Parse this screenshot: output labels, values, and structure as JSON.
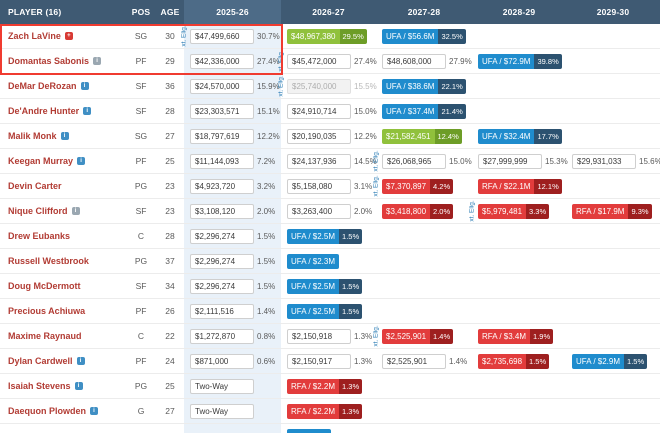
{
  "labels": {
    "ext_label": "xt. Elig."
  },
  "colors": {
    "header_bg": "#3f5a73",
    "selected_column_bg": "#e9f1f9",
    "highlight_border": "#f03b30",
    "green_badge": "#90c13c",
    "blue_badge": "#1f8ccd",
    "red_badge": "#e23c3c",
    "player_link": "#b23c34"
  },
  "columns": [
    {
      "label": "PLAYER (16)"
    },
    {
      "label": "POS"
    },
    {
      "label": "AGE"
    },
    {
      "label": "2025-26",
      "selected": true
    },
    {
      "label": "2026-27"
    },
    {
      "label": "2027-28"
    },
    {
      "label": "2028-29"
    },
    {
      "label": "2029-30"
    }
  ],
  "rows": [
    {
      "player": "Zach LaVine",
      "icon": {
        "name": "injury-icon",
        "color": "red",
        "glyph": "+"
      },
      "pos": "SG",
      "age": "30",
      "cells": {
        "y2025": {
          "t": "plain",
          "v": "$47,499,660",
          "p": "30.7%",
          "ext": true
        },
        "y2026": {
          "t": "badge",
          "c": "green",
          "v": "$48,967,380",
          "p": "29.5%"
        },
        "y2027": {
          "t": "badge",
          "c": "blue",
          "v": "UFA / $56.6M",
          "p": "32.5%"
        },
        "y2028": null,
        "y2029": null
      }
    },
    {
      "player": "Domantas Sabonis",
      "icon": {
        "name": "note-icon",
        "color": "gray",
        "glyph": "i"
      },
      "pos": "PF",
      "age": "29",
      "cells": {
        "y2025": {
          "t": "plain",
          "v": "$42,336,000",
          "p": "27.4%"
        },
        "y2026": {
          "t": "plain",
          "v": "$45,472,000",
          "p": "27.4%",
          "ext": true
        },
        "y2027": {
          "t": "plain",
          "v": "$48,608,000",
          "p": "27.9%"
        },
        "y2028": {
          "t": "badge",
          "c": "blue",
          "v": "UFA / $72.9M",
          "p": "39.8%"
        },
        "y2029": null
      }
    },
    {
      "player": "DeMar DeRozan",
      "icon": {
        "name": "info-icon",
        "color": "blue",
        "glyph": "i"
      },
      "pos": "SF",
      "age": "36",
      "cells": {
        "y2025": {
          "t": "plain",
          "v": "$24,570,000",
          "p": "15.9%"
        },
        "y2026": {
          "t": "muted",
          "v": "$25,740,000",
          "p": "15.5%",
          "ext": true
        },
        "y2027": {
          "t": "badge",
          "c": "blue",
          "v": "UFA / $38.6M",
          "p": "22.1%"
        },
        "y2028": null,
        "y2029": null
      }
    },
    {
      "player": "De'Andre Hunter",
      "icon": {
        "name": "info-icon",
        "color": "blue",
        "glyph": "i"
      },
      "pos": "SF",
      "age": "28",
      "cells": {
        "y2025": {
          "t": "plain",
          "v": "$23,303,571",
          "p": "15.1%"
        },
        "y2026": {
          "t": "plain",
          "v": "$24,910,714",
          "p": "15.0%"
        },
        "y2027": {
          "t": "badge",
          "c": "blue",
          "v": "UFA / $37.4M",
          "p": "21.4%"
        },
        "y2028": null,
        "y2029": null
      }
    },
    {
      "player": "Malik Monk",
      "icon": {
        "name": "info-icon",
        "color": "blue",
        "glyph": "i"
      },
      "pos": "SG",
      "age": "27",
      "cells": {
        "y2025": {
          "t": "plain",
          "v": "$18,797,619",
          "p": "12.2%"
        },
        "y2026": {
          "t": "plain",
          "v": "$20,190,035",
          "p": "12.2%"
        },
        "y2027": {
          "t": "badge",
          "c": "green",
          "v": "$21,582,451",
          "p": "12.4%"
        },
        "y2028": {
          "t": "badge",
          "c": "blue",
          "v": "UFA / $32.4M",
          "p": "17.7%"
        },
        "y2029": null
      }
    },
    {
      "player": "Keegan Murray",
      "icon": {
        "name": "info-icon",
        "color": "blue",
        "glyph": "i"
      },
      "pos": "PF",
      "age": "25",
      "cells": {
        "y2025": {
          "t": "plain",
          "v": "$11,144,093",
          "p": "7.2%"
        },
        "y2026": {
          "t": "plain",
          "v": "$24,137,936",
          "p": "14.5%"
        },
        "y2027": {
          "t": "plain",
          "v": "$26,068,965",
          "p": "15.0%",
          "ext": true
        },
        "y2028": {
          "t": "plain",
          "v": "$27,999,999",
          "p": "15.3%"
        },
        "y2029": {
          "t": "plain",
          "v": "$29,931,033",
          "p": "15.6%"
        }
      }
    },
    {
      "player": "Devin Carter",
      "icon": null,
      "pos": "PG",
      "age": "23",
      "cells": {
        "y2025": {
          "t": "plain",
          "v": "$4,923,720",
          "p": "3.2%"
        },
        "y2026": {
          "t": "plain",
          "v": "$5,158,080",
          "p": "3.1%"
        },
        "y2027": {
          "t": "badge",
          "c": "red",
          "v": "$7,370,897",
          "p": "4.2%",
          "ext": true
        },
        "y2028": {
          "t": "badge",
          "c": "red",
          "v": "RFA / $22.1M",
          "p": "12.1%"
        },
        "y2029": null
      }
    },
    {
      "player": "Nique Clifford",
      "icon": {
        "name": "note-icon",
        "color": "gray",
        "glyph": "i"
      },
      "pos": "SF",
      "age": "23",
      "cells": {
        "y2025": {
          "t": "plain",
          "v": "$3,108,120",
          "p": "2.0%"
        },
        "y2026": {
          "t": "plain",
          "v": "$3,263,400",
          "p": "2.0%"
        },
        "y2027": {
          "t": "badge",
          "c": "red",
          "v": "$3,418,800",
          "p": "2.0%"
        },
        "y2028": {
          "t": "badge",
          "c": "red",
          "v": "$5,979,481",
          "p": "3.3%",
          "ext": true
        },
        "y2029": {
          "t": "badge",
          "c": "red",
          "v": "RFA / $17.9M",
          "p": "9.3%"
        }
      }
    },
    {
      "player": "Drew Eubanks",
      "icon": null,
      "pos": "C",
      "age": "28",
      "cells": {
        "y2025": {
          "t": "plain",
          "v": "$2,296,274",
          "p": "1.5%"
        },
        "y2026": {
          "t": "badge",
          "c": "blue",
          "v": "UFA / $2.5M",
          "p": "1.5%"
        },
        "y2027": null,
        "y2028": null,
        "y2029": null
      }
    },
    {
      "player": "Russell Westbrook",
      "icon": null,
      "pos": "PG",
      "age": "37",
      "cells": {
        "y2025": {
          "t": "plain",
          "v": "$2,296,274",
          "p": "1.5%"
        },
        "y2026": {
          "t": "badge",
          "c": "blue",
          "v": "UFA / $2.3M",
          "p": ""
        },
        "y2027": null,
        "y2028": null,
        "y2029": null
      }
    },
    {
      "player": "Doug McDermott",
      "icon": null,
      "pos": "SF",
      "age": "34",
      "cells": {
        "y2025": {
          "t": "plain",
          "v": "$2,296,274",
          "p": "1.5%"
        },
        "y2026": {
          "t": "badge",
          "c": "blue",
          "v": "UFA / $2.5M",
          "p": "1.5%"
        },
        "y2027": null,
        "y2028": null,
        "y2029": null
      }
    },
    {
      "player": "Precious Achiuwa",
      "icon": null,
      "pos": "PF",
      "age": "26",
      "cells": {
        "y2025": {
          "t": "plain",
          "v": "$2,111,516",
          "p": "1.4%"
        },
        "y2026": {
          "t": "badge",
          "c": "blue",
          "v": "UFA / $2.5M",
          "p": "1.5%"
        },
        "y2027": null,
        "y2028": null,
        "y2029": null
      }
    },
    {
      "player": "Maxime Raynaud",
      "icon": null,
      "pos": "C",
      "age": "22",
      "cells": {
        "y2025": {
          "t": "plain",
          "v": "$1,272,870",
          "p": "0.8%"
        },
        "y2026": {
          "t": "plain",
          "v": "$2,150,918",
          "p": "1.3%"
        },
        "y2027": {
          "t": "badge",
          "c": "red",
          "v": "$2,525,901",
          "p": "1.4%",
          "ext": true
        },
        "y2028": {
          "t": "badge",
          "c": "red",
          "v": "RFA / $3.4M",
          "p": "1.9%"
        },
        "y2029": null
      }
    },
    {
      "player": "Dylan Cardwell",
      "icon": {
        "name": "info-icon",
        "color": "blue",
        "glyph": "i"
      },
      "pos": "PF",
      "age": "24",
      "cells": {
        "y2025": {
          "t": "plain",
          "v": "$871,000",
          "p": "0.6%"
        },
        "y2026": {
          "t": "plain",
          "v": "$2,150,917",
          "p": "1.3%"
        },
        "y2027": {
          "t": "plain",
          "v": "$2,525,901",
          "p": "1.4%"
        },
        "y2028": {
          "t": "badge",
          "c": "red",
          "v": "$2,735,698",
          "p": "1.5%"
        },
        "y2029": {
          "t": "badge",
          "c": "blue",
          "v": "UFA / $2.9M",
          "p": "1.5%"
        }
      }
    },
    {
      "player": "Isaiah Stevens",
      "icon": {
        "name": "two-way-icon",
        "color": "blue",
        "glyph": "i"
      },
      "pos": "PG",
      "age": "25",
      "cells": {
        "y2025": {
          "t": "tw",
          "v": "Two-Way",
          "p": ""
        },
        "y2026": {
          "t": "badge",
          "c": "red",
          "v": "RFA / $2.2M",
          "p": "1.3%"
        },
        "y2027": null,
        "y2028": null,
        "y2029": null
      }
    },
    {
      "player": "Daequon Plowden",
      "icon": {
        "name": "two-way-icon",
        "color": "blue",
        "glyph": "i"
      },
      "pos": "G",
      "age": "27",
      "cells": {
        "y2025": {
          "t": "tw",
          "v": "Two-Way",
          "p": ""
        },
        "y2026": {
          "t": "badge",
          "c": "red",
          "v": "RFA / $2.2M",
          "p": "1.3%"
        },
        "y2027": null,
        "y2028": null,
        "y2029": null
      }
    }
  ],
  "partial_row": {
    "cells": {
      "y2026": {
        "t": "badge",
        "c": "blue",
        "v": "",
        "p": ""
      }
    }
  }
}
